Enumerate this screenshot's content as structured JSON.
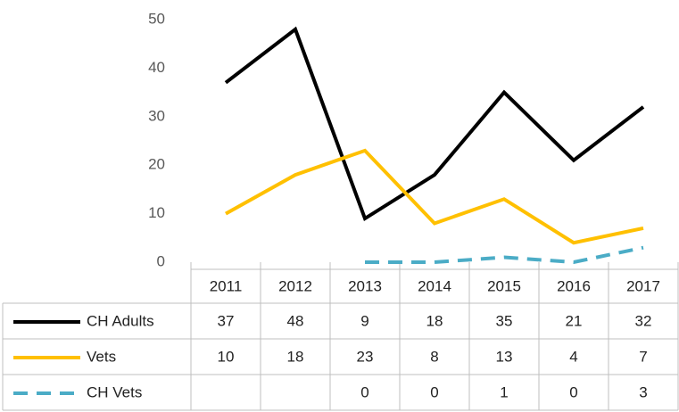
{
  "chart_data": {
    "type": "line",
    "categories": [
      "2011",
      "2012",
      "2013",
      "2014",
      "2015",
      "2016",
      "2017"
    ],
    "series": [
      {
        "name": "CH Adults",
        "color": "#000000",
        "values": [
          37,
          48,
          9,
          18,
          35,
          21,
          32
        ]
      },
      {
        "name": "Vets",
        "color": "#ffc000",
        "values": [
          10,
          18,
          23,
          8,
          13,
          4,
          7
        ]
      },
      {
        "name": "CH Vets",
        "color": "#4bacc6",
        "dashed": true,
        "values": [
          null,
          null,
          0,
          0,
          1,
          0,
          3
        ]
      }
    ],
    "ylim": [
      0,
      50
    ],
    "yticks": [
      0,
      10,
      20,
      30,
      40,
      50
    ],
    "grid": false,
    "data_table": true
  }
}
